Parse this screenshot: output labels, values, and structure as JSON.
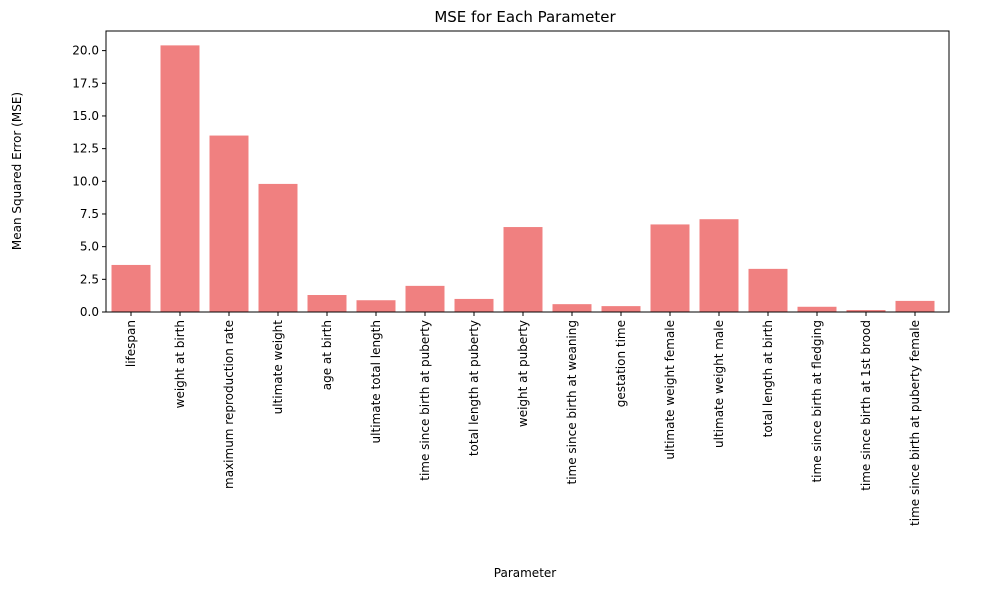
{
  "chart_data": {
    "type": "bar",
    "title": "MSE for Each Parameter",
    "xlabel": "Parameter",
    "ylabel": "Mean Squared Error (MSE)",
    "ylim": [
      0,
      21.5
    ],
    "yticks": [
      0.0,
      2.5,
      5.0,
      7.5,
      10.0,
      12.5,
      15.0,
      17.5,
      20.0
    ],
    "ytick_labels": [
      "0.0",
      "2.5",
      "5.0",
      "7.5",
      "10.0",
      "12.5",
      "15.0",
      "17.5",
      "20.0"
    ],
    "grid": false,
    "legend": "none",
    "bar_color": "#f08080",
    "categories": [
      "lifespan",
      "weight at birth",
      "maximum reproduction rate",
      "ultimate weight",
      "age at birth",
      "ultimate total length",
      "time since birth at puberty",
      "total length at puberty",
      "weight at puberty",
      "time since birth at weaning",
      "gestation time",
      "ultimate weight female",
      "ultimate weight male",
      "total length at birth",
      "time since birth at fledging",
      "time since birth at 1st brood",
      "time since birth at puberty female"
    ],
    "values": [
      3.6,
      20.4,
      13.5,
      9.8,
      1.3,
      0.9,
      2.0,
      1.0,
      6.5,
      0.6,
      0.45,
      6.7,
      7.1,
      3.3,
      0.4,
      0.15,
      0.85
    ]
  }
}
